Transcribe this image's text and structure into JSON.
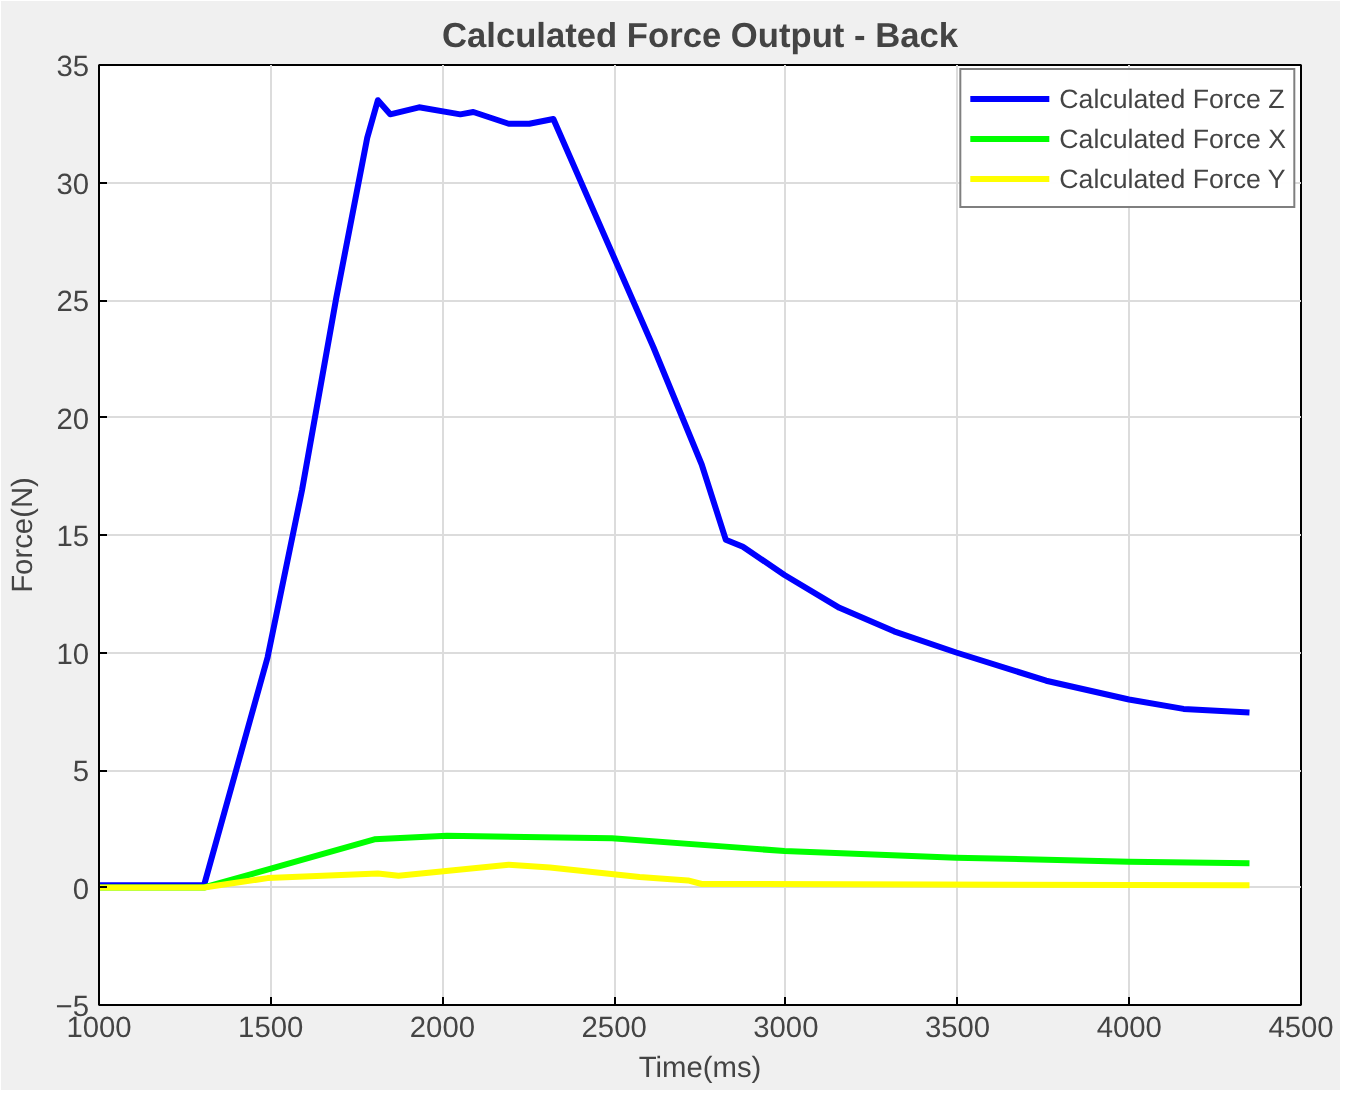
{
  "chart_data": {
    "type": "line",
    "title": "Calculated Force Output - Back",
    "xlabel": "Time(ms)",
    "ylabel": "Force(N)",
    "xlim": [
      1000,
      4500
    ],
    "xticks": [
      1000,
      1500,
      2000,
      2500,
      3000,
      3500,
      4000,
      4500
    ],
    "ylim": [
      -5,
      35
    ],
    "yticks": [
      -5,
      0,
      5,
      10,
      15,
      20,
      25,
      30,
      35
    ],
    "grid": true,
    "legend": "top right",
    "line_style": "solid",
    "series": [
      {
        "name": "Calculated Force Z",
        "color": "#0000ff",
        "x": [
          1000,
          1306,
          1491,
          1591,
          1691,
          1781,
          1812,
          1848,
          1932,
          2052,
          2090,
          2193,
          2253,
          2323,
          2614,
          2755,
          2825,
          2875,
          2996,
          3156,
          3315,
          3496,
          3758,
          3999,
          4158,
          4350
        ],
        "values": [
          0.1,
          0.1,
          9.8,
          16.9,
          25.1,
          31.9,
          33.5,
          32.9,
          33.2,
          32.9,
          33.0,
          32.5,
          32.5,
          32.7,
          23.0,
          18.0,
          14.8,
          14.5,
          13.3,
          11.9,
          10.9,
          10.0,
          8.8,
          8.0,
          7.6,
          7.45
        ]
      },
      {
        "name": "Calculated Force X",
        "color": "#00ff00",
        "x": [
          1000,
          1306,
          1802,
          2013,
          2494,
          2815,
          2996,
          3496,
          3999,
          4350
        ],
        "values": [
          0.0,
          0.0,
          2.05,
          2.2,
          2.1,
          1.75,
          1.55,
          1.27,
          1.1,
          1.03
        ]
      },
      {
        "name": "Calculated Force Y",
        "color": "#ffff00",
        "x": [
          1000,
          1306,
          1491,
          1812,
          1872,
          2193,
          2313,
          2574,
          2715,
          2755,
          4350
        ],
        "values": [
          0.0,
          0.0,
          0.4,
          0.6,
          0.5,
          0.97,
          0.85,
          0.45,
          0.3,
          0.15,
          0.1
        ]
      }
    ]
  }
}
